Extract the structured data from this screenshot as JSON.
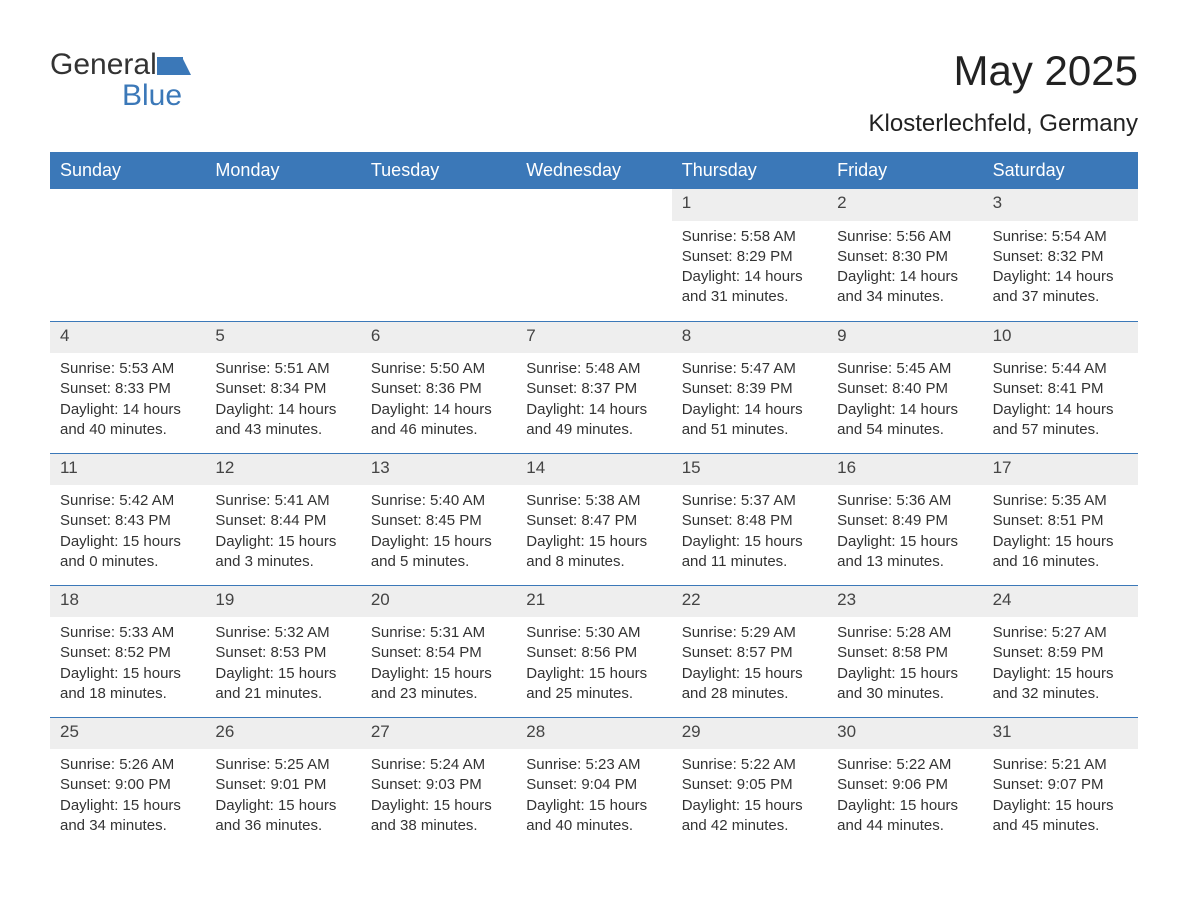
{
  "brand": {
    "general": "General",
    "blue": "Blue",
    "logo_color": "#3b78b8"
  },
  "title": "May 2025",
  "location": "Klosterlechfeld, Germany",
  "colors": {
    "header_bg": "#3b78b8",
    "header_text": "#ffffff",
    "daynum_bg": "#eeeeee",
    "divider": "#3b78b8",
    "body_text": "#333333",
    "page_bg": "#ffffff"
  },
  "fonts": {
    "title_size_pt": 32,
    "location_size_pt": 18,
    "dayheader_size_pt": 14,
    "cell_size_pt": 11
  },
  "day_names": [
    "Sunday",
    "Monday",
    "Tuesday",
    "Wednesday",
    "Thursday",
    "Friday",
    "Saturday"
  ],
  "weeks": [
    {
      "nums": [
        "",
        "",
        "",
        "",
        "1",
        "2",
        "3"
      ],
      "cells": [
        {
          "sunrise": "",
          "sunset": "",
          "daylight": ""
        },
        {
          "sunrise": "",
          "sunset": "",
          "daylight": ""
        },
        {
          "sunrise": "",
          "sunset": "",
          "daylight": ""
        },
        {
          "sunrise": "",
          "sunset": "",
          "daylight": ""
        },
        {
          "sunrise": "Sunrise: 5:58 AM",
          "sunset": "Sunset: 8:29 PM",
          "daylight": "Daylight: 14 hours and 31 minutes."
        },
        {
          "sunrise": "Sunrise: 5:56 AM",
          "sunset": "Sunset: 8:30 PM",
          "daylight": "Daylight: 14 hours and 34 minutes."
        },
        {
          "sunrise": "Sunrise: 5:54 AM",
          "sunset": "Sunset: 8:32 PM",
          "daylight": "Daylight: 14 hours and 37 minutes."
        }
      ]
    },
    {
      "nums": [
        "4",
        "5",
        "6",
        "7",
        "8",
        "9",
        "10"
      ],
      "cells": [
        {
          "sunrise": "Sunrise: 5:53 AM",
          "sunset": "Sunset: 8:33 PM",
          "daylight": "Daylight: 14 hours and 40 minutes."
        },
        {
          "sunrise": "Sunrise: 5:51 AM",
          "sunset": "Sunset: 8:34 PM",
          "daylight": "Daylight: 14 hours and 43 minutes."
        },
        {
          "sunrise": "Sunrise: 5:50 AM",
          "sunset": "Sunset: 8:36 PM",
          "daylight": "Daylight: 14 hours and 46 minutes."
        },
        {
          "sunrise": "Sunrise: 5:48 AM",
          "sunset": "Sunset: 8:37 PM",
          "daylight": "Daylight: 14 hours and 49 minutes."
        },
        {
          "sunrise": "Sunrise: 5:47 AM",
          "sunset": "Sunset: 8:39 PM",
          "daylight": "Daylight: 14 hours and 51 minutes."
        },
        {
          "sunrise": "Sunrise: 5:45 AM",
          "sunset": "Sunset: 8:40 PM",
          "daylight": "Daylight: 14 hours and 54 minutes."
        },
        {
          "sunrise": "Sunrise: 5:44 AM",
          "sunset": "Sunset: 8:41 PM",
          "daylight": "Daylight: 14 hours and 57 minutes."
        }
      ]
    },
    {
      "nums": [
        "11",
        "12",
        "13",
        "14",
        "15",
        "16",
        "17"
      ],
      "cells": [
        {
          "sunrise": "Sunrise: 5:42 AM",
          "sunset": "Sunset: 8:43 PM",
          "daylight": "Daylight: 15 hours and 0 minutes."
        },
        {
          "sunrise": "Sunrise: 5:41 AM",
          "sunset": "Sunset: 8:44 PM",
          "daylight": "Daylight: 15 hours and 3 minutes."
        },
        {
          "sunrise": "Sunrise: 5:40 AM",
          "sunset": "Sunset: 8:45 PM",
          "daylight": "Daylight: 15 hours and 5 minutes."
        },
        {
          "sunrise": "Sunrise: 5:38 AM",
          "sunset": "Sunset: 8:47 PM",
          "daylight": "Daylight: 15 hours and 8 minutes."
        },
        {
          "sunrise": "Sunrise: 5:37 AM",
          "sunset": "Sunset: 8:48 PM",
          "daylight": "Daylight: 15 hours and 11 minutes."
        },
        {
          "sunrise": "Sunrise: 5:36 AM",
          "sunset": "Sunset: 8:49 PM",
          "daylight": "Daylight: 15 hours and 13 minutes."
        },
        {
          "sunrise": "Sunrise: 5:35 AM",
          "sunset": "Sunset: 8:51 PM",
          "daylight": "Daylight: 15 hours and 16 minutes."
        }
      ]
    },
    {
      "nums": [
        "18",
        "19",
        "20",
        "21",
        "22",
        "23",
        "24"
      ],
      "cells": [
        {
          "sunrise": "Sunrise: 5:33 AM",
          "sunset": "Sunset: 8:52 PM",
          "daylight": "Daylight: 15 hours and 18 minutes."
        },
        {
          "sunrise": "Sunrise: 5:32 AM",
          "sunset": "Sunset: 8:53 PM",
          "daylight": "Daylight: 15 hours and 21 minutes."
        },
        {
          "sunrise": "Sunrise: 5:31 AM",
          "sunset": "Sunset: 8:54 PM",
          "daylight": "Daylight: 15 hours and 23 minutes."
        },
        {
          "sunrise": "Sunrise: 5:30 AM",
          "sunset": "Sunset: 8:56 PM",
          "daylight": "Daylight: 15 hours and 25 minutes."
        },
        {
          "sunrise": "Sunrise: 5:29 AM",
          "sunset": "Sunset: 8:57 PM",
          "daylight": "Daylight: 15 hours and 28 minutes."
        },
        {
          "sunrise": "Sunrise: 5:28 AM",
          "sunset": "Sunset: 8:58 PM",
          "daylight": "Daylight: 15 hours and 30 minutes."
        },
        {
          "sunrise": "Sunrise: 5:27 AM",
          "sunset": "Sunset: 8:59 PM",
          "daylight": "Daylight: 15 hours and 32 minutes."
        }
      ]
    },
    {
      "nums": [
        "25",
        "26",
        "27",
        "28",
        "29",
        "30",
        "31"
      ],
      "cells": [
        {
          "sunrise": "Sunrise: 5:26 AM",
          "sunset": "Sunset: 9:00 PM",
          "daylight": "Daylight: 15 hours and 34 minutes."
        },
        {
          "sunrise": "Sunrise: 5:25 AM",
          "sunset": "Sunset: 9:01 PM",
          "daylight": "Daylight: 15 hours and 36 minutes."
        },
        {
          "sunrise": "Sunrise: 5:24 AM",
          "sunset": "Sunset: 9:03 PM",
          "daylight": "Daylight: 15 hours and 38 minutes."
        },
        {
          "sunrise": "Sunrise: 5:23 AM",
          "sunset": "Sunset: 9:04 PM",
          "daylight": "Daylight: 15 hours and 40 minutes."
        },
        {
          "sunrise": "Sunrise: 5:22 AM",
          "sunset": "Sunset: 9:05 PM",
          "daylight": "Daylight: 15 hours and 42 minutes."
        },
        {
          "sunrise": "Sunrise: 5:22 AM",
          "sunset": "Sunset: 9:06 PM",
          "daylight": "Daylight: 15 hours and 44 minutes."
        },
        {
          "sunrise": "Sunrise: 5:21 AM",
          "sunset": "Sunset: 9:07 PM",
          "daylight": "Daylight: 15 hours and 45 minutes."
        }
      ]
    }
  ]
}
